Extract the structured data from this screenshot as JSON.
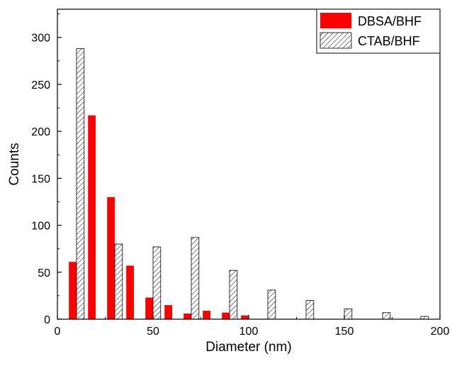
{
  "chart_data": {
    "type": "bar",
    "title": "",
    "xlabel": "Diameter (nm)",
    "ylabel": "Counts",
    "xlim": [
      0,
      200
    ],
    "ylim": [
      0,
      330
    ],
    "xticks": [
      0,
      50,
      100,
      150,
      200
    ],
    "yticks": [
      0,
      50,
      100,
      150,
      200,
      250,
      300
    ],
    "grid": false,
    "legend_position": "top-right",
    "series": [
      {
        "name": "DBSA/BHF",
        "fill": "solid",
        "color": "#ff0000",
        "points": [
          {
            "x": 8,
            "y": 61
          },
          {
            "x": 18,
            "y": 217
          },
          {
            "x": 28,
            "y": 130
          },
          {
            "x": 38,
            "y": 57
          },
          {
            "x": 48,
            "y": 23
          },
          {
            "x": 58,
            "y": 15
          },
          {
            "x": 68,
            "y": 6
          },
          {
            "x": 78,
            "y": 9
          },
          {
            "x": 88,
            "y": 7
          },
          {
            "x": 98,
            "y": 4
          }
        ]
      },
      {
        "name": "CTAB/BHF",
        "fill": "hatched",
        "color": "#000000",
        "points": [
          {
            "x": 12,
            "y": 288
          },
          {
            "x": 32,
            "y": 80
          },
          {
            "x": 52,
            "y": 77
          },
          {
            "x": 72,
            "y": 87
          },
          {
            "x": 92,
            "y": 52
          },
          {
            "x": 112,
            "y": 31
          },
          {
            "x": 132,
            "y": 20
          },
          {
            "x": 152,
            "y": 11
          },
          {
            "x": 172,
            "y": 7
          },
          {
            "x": 192,
            "y": 3
          }
        ]
      }
    ]
  }
}
